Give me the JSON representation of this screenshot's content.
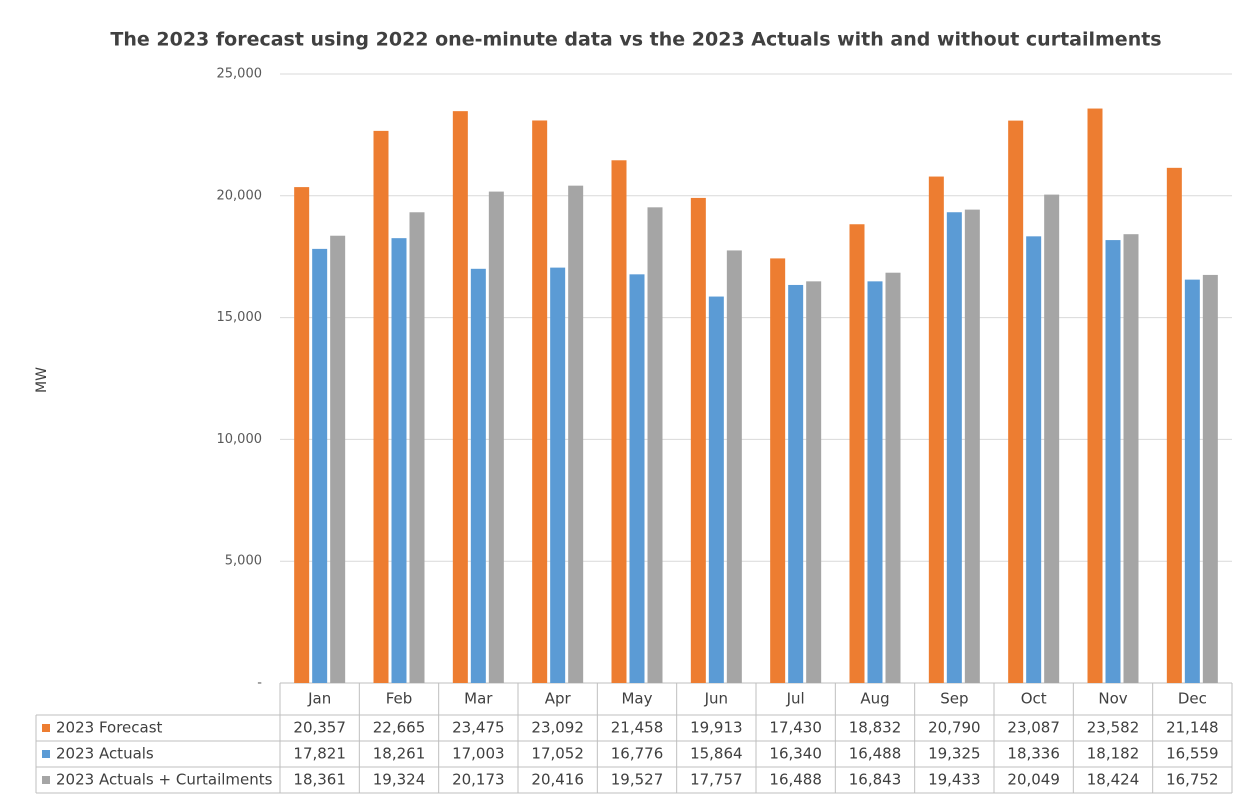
{
  "chart_data": {
    "type": "bar",
    "title": "The 2023 forecast using 2022 one-minute data vs the 2023 Actuals with and without curtailments",
    "y_label": "MW",
    "categories": [
      "Jan",
      "Feb",
      "Mar",
      "Apr",
      "May",
      "Jun",
      "Jul",
      "Aug",
      "Sep",
      "Oct",
      "Nov",
      "Dec"
    ],
    "series": [
      {
        "name": "2023 Forecast",
        "color": "#ed7d31",
        "values": [
          20357,
          22665,
          23475,
          23092,
          21458,
          19913,
          17430,
          18832,
          20790,
          23087,
          23582,
          21148
        ],
        "value_labels": [
          "20,357",
          "22,665",
          "23,475",
          "23,092",
          "21,458",
          "19,913",
          "17,430",
          "18,832",
          "20,790",
          "23,087",
          "23,582",
          "21,148"
        ]
      },
      {
        "name": "2023 Actuals",
        "color": "#5b9bd5",
        "values": [
          17821,
          18261,
          17003,
          17052,
          16776,
          15864,
          16340,
          16488,
          19325,
          18336,
          18182,
          16559
        ],
        "value_labels": [
          "17,821",
          "18,261",
          "17,003",
          "17,052",
          "16,776",
          "15,864",
          "16,340",
          "16,488",
          "19,325",
          "18,336",
          "18,182",
          "16,559"
        ]
      },
      {
        "name": "2023 Actuals + Curtailments",
        "color": "#a5a5a5",
        "values": [
          18361,
          19324,
          20173,
          20416,
          19527,
          17757,
          16488,
          16843,
          19433,
          20049,
          18424,
          16752
        ],
        "value_labels": [
          "18,361",
          "19,324",
          "20,173",
          "20,416",
          "19,527",
          "17,757",
          "16,488",
          "16,843",
          "19,433",
          "20,049",
          "18,424",
          "16,752"
        ]
      }
    ],
    "ylim": [
      0,
      25000
    ],
    "yticks": [
      {
        "value": 0,
        "label": "-"
      },
      {
        "value": 5000,
        "label": "5,000"
      },
      {
        "value": 10000,
        "label": "10,000"
      },
      {
        "value": 15000,
        "label": "15,000"
      },
      {
        "value": 20000,
        "label": "20,000"
      },
      {
        "value": 25000,
        "label": "25,000"
      }
    ],
    "grid": true
  }
}
